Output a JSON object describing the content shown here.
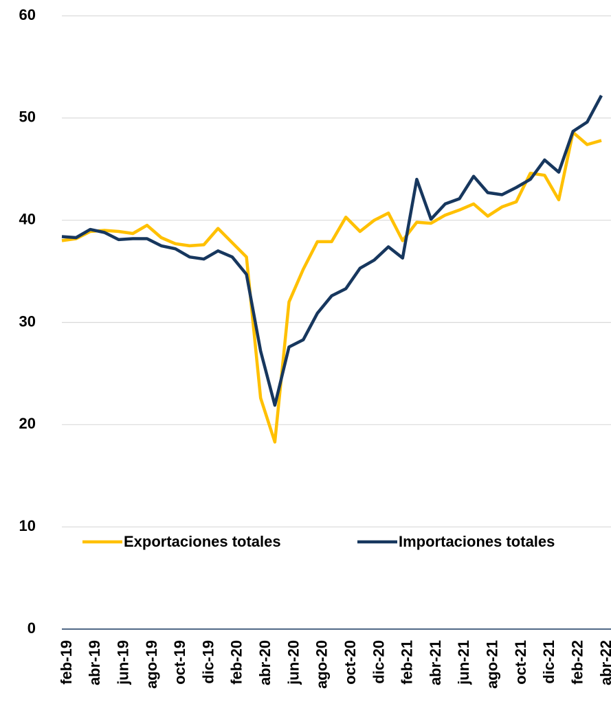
{
  "chart_data": {
    "type": "line",
    "categories": [
      "feb-19",
      null,
      "abr-19",
      null,
      "jun-19",
      null,
      "ago-19",
      null,
      "oct-19",
      null,
      "dic-19",
      null,
      "feb-20",
      null,
      "abr-20",
      null,
      "jun-20",
      null,
      "ago-20",
      null,
      "oct-20",
      null,
      "dic-20",
      null,
      "feb-21",
      null,
      "abr-21",
      null,
      "jun-21",
      null,
      "ago-21",
      null,
      "oct-21",
      null,
      "dic-21",
      null,
      "feb-22",
      null,
      "abr-22"
    ],
    "series": [
      {
        "name": "Exportaciones totales",
        "color": "#ffc000",
        "values": [
          38.0,
          38.2,
          38.9,
          39.0,
          38.9,
          38.7,
          39.5,
          38.3,
          37.7,
          37.5,
          37.6,
          39.2,
          37.8,
          36.4,
          22.6,
          18.3,
          32.0,
          35.2,
          37.9,
          37.9,
          40.3,
          38.9,
          40.0,
          40.7,
          38.0,
          39.8,
          39.7,
          40.5,
          41.0,
          41.6,
          40.4,
          41.3,
          41.8,
          44.6,
          44.4,
          42.0,
          48.6,
          47.4,
          47.8
        ]
      },
      {
        "name": "Importaciones totales",
        "color": "#17375e",
        "values": [
          38.4,
          38.3,
          39.1,
          38.8,
          38.1,
          38.2,
          38.2,
          37.5,
          37.2,
          36.4,
          36.2,
          37.0,
          36.4,
          34.7,
          27.2,
          21.9,
          27.6,
          28.3,
          30.9,
          32.6,
          33.3,
          35.3,
          36.1,
          37.4,
          36.3,
          44.0,
          40.1,
          41.6,
          42.1,
          44.3,
          42.7,
          42.5,
          43.2,
          44.0,
          45.9,
          44.7,
          48.7,
          49.6,
          52.2
        ]
      }
    ],
    "ylim": [
      0,
      60
    ],
    "yticks": [
      0,
      10,
      20,
      30,
      40,
      50,
      60
    ],
    "grid": true
  }
}
